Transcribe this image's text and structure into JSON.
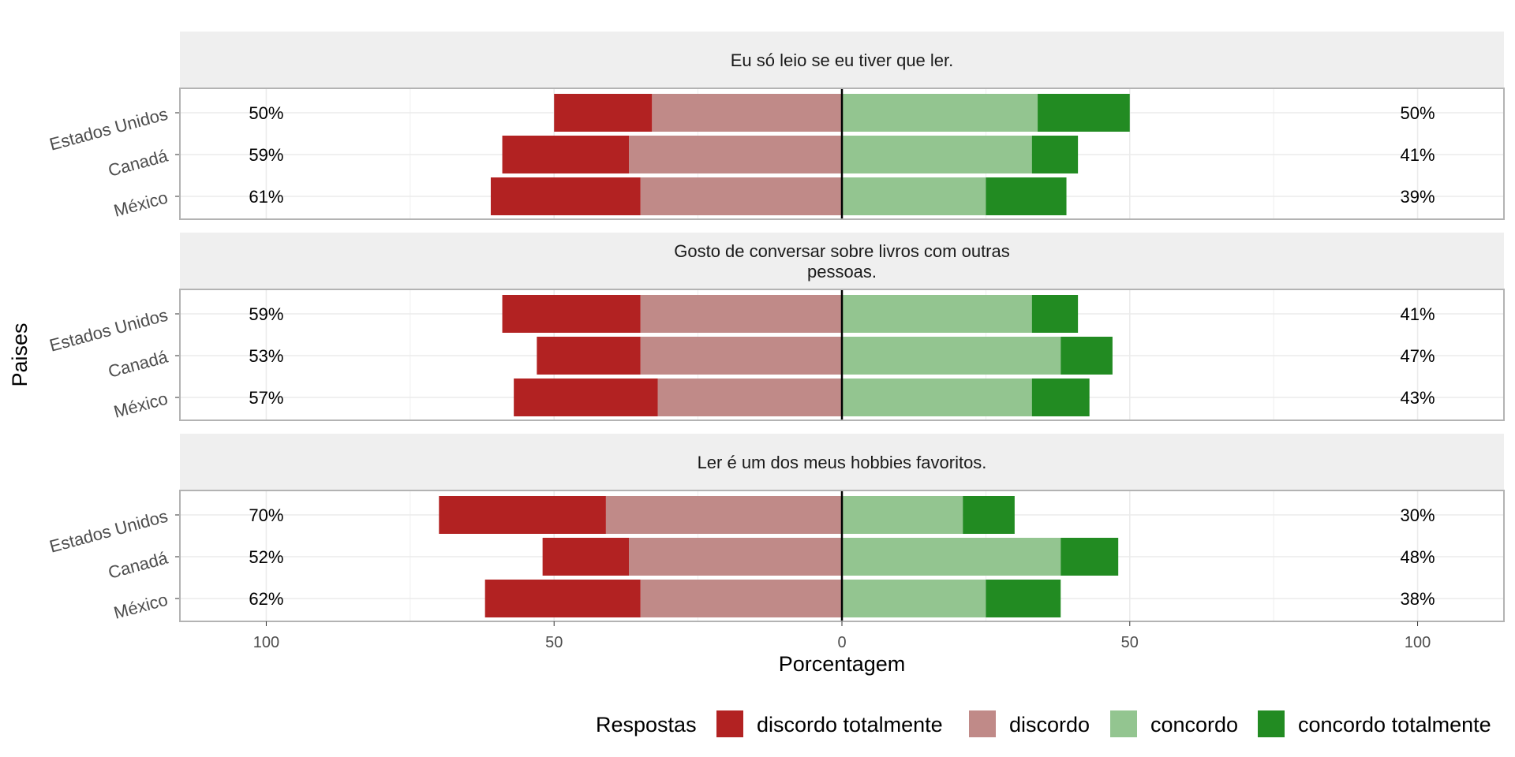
{
  "chart_data": {
    "type": "bar",
    "subtype": "diverging-stacked-horizontal",
    "xlabel": "Porcentagem",
    "ylabel": "Paises",
    "xlim": [
      -115,
      115
    ],
    "x_ticks": [
      -100,
      -50,
      0,
      50,
      100
    ],
    "x_tick_labels": [
      "100",
      "50",
      "0",
      "50",
      "100"
    ],
    "grid": true,
    "legend": {
      "title": "Respostas",
      "position": "bottom",
      "entries": [
        "discordo totalmente",
        "discordo",
        "concordo",
        "concordo totalmente"
      ]
    },
    "colors": {
      "discordo totalmente": "#b22222",
      "discordo": "#c08a88",
      "concordo": "#93c590",
      "concordo totalmente": "#228b22",
      "strip_background": "#efefef",
      "panel_border": "#b3b3b3",
      "zero_line": "#000000"
    },
    "categories": [
      "Estados Unidos",
      "Canadá",
      "México"
    ],
    "panels": [
      {
        "title": "Eu só leio se eu tiver que ler.",
        "rows": [
          {
            "country": "Estados Unidos",
            "discordo_totalmente": 17,
            "discordo": 33,
            "concordo": 34,
            "concordo_totalmente": 16,
            "left_label": "50%",
            "right_label": "50%"
          },
          {
            "country": "Canadá",
            "discordo_totalmente": 22,
            "discordo": 37,
            "concordo": 33,
            "concordo_totalmente": 8,
            "left_label": "59%",
            "right_label": "41%"
          },
          {
            "country": "México",
            "discordo_totalmente": 26,
            "discordo": 35,
            "concordo": 25,
            "concordo_totalmente": 14,
            "left_label": "61%",
            "right_label": "39%"
          }
        ]
      },
      {
        "title": "Gosto de conversar sobre livros com outras pessoas.",
        "rows": [
          {
            "country": "Estados Unidos",
            "discordo_totalmente": 24,
            "discordo": 35,
            "concordo": 33,
            "concordo_totalmente": 8,
            "left_label": "59%",
            "right_label": "41%"
          },
          {
            "country": "Canadá",
            "discordo_totalmente": 18,
            "discordo": 35,
            "concordo": 38,
            "concordo_totalmente": 9,
            "left_label": "53%",
            "right_label": "47%"
          },
          {
            "country": "México",
            "discordo_totalmente": 25,
            "discordo": 32,
            "concordo": 33,
            "concordo_totalmente": 10,
            "left_label": "57%",
            "right_label": "43%"
          }
        ]
      },
      {
        "title": "Ler é um dos meus hobbies favoritos.",
        "rows": [
          {
            "country": "Estados Unidos",
            "discordo_totalmente": 29,
            "discordo": 41,
            "concordo": 21,
            "concordo_totalmente": 9,
            "left_label": "70%",
            "right_label": "30%"
          },
          {
            "country": "Canadá",
            "discordo_totalmente": 15,
            "discordo": 37,
            "concordo": 38,
            "concordo_totalmente": 10,
            "left_label": "52%",
            "right_label": "48%"
          },
          {
            "country": "México",
            "discordo_totalmente": 27,
            "discordo": 35,
            "concordo": 25,
            "concordo_totalmente": 13,
            "left_label": "62%",
            "right_label": "38%"
          }
        ]
      }
    ]
  }
}
